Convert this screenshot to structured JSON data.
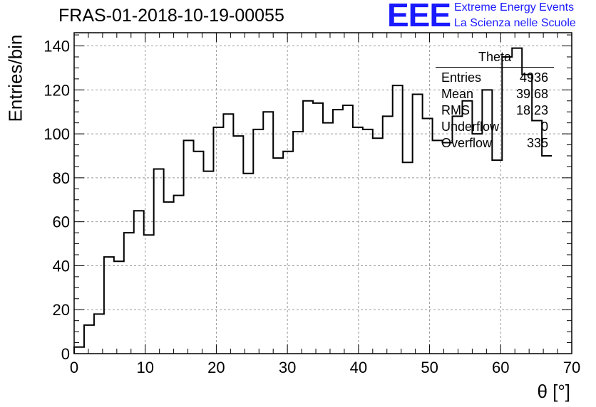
{
  "header": {
    "run_title": "FRAS-01-2018-10-19-00055",
    "logo_text": "EEE",
    "logo_line1": "Extreme Energy Events",
    "logo_line2": "La Scienza nelle Scuole"
  },
  "stats_box": {
    "title": "Theta",
    "rows": [
      {
        "label": "Entries",
        "value": "4936"
      },
      {
        "label": "Mean",
        "value": "39.68"
      },
      {
        "label": "RMS",
        "value": "18.23"
      },
      {
        "label": "Underflow",
        "value": "0"
      },
      {
        "label": "Overflow",
        "value": "335"
      }
    ]
  },
  "colors": {
    "line": "#000000",
    "grid": "#999999",
    "logo": "#1a1aff"
  },
  "chart_data": {
    "type": "histogram",
    "title": "FRAS-01-2018-10-19-00055",
    "xlabel": "θ [°]",
    "ylabel": "Entries/bin",
    "xlim": [
      0,
      70
    ],
    "ylim": [
      0,
      146
    ],
    "xticks": [
      0,
      10,
      20,
      30,
      40,
      50,
      60,
      70
    ],
    "yticks": [
      0,
      20,
      40,
      60,
      80,
      100,
      120,
      140
    ],
    "grid": true,
    "bin_width": 1.4,
    "bin_edges_start": 0,
    "values": [
      3,
      13,
      18,
      44,
      42,
      55,
      65,
      54,
      84,
      69,
      72,
      97,
      92,
      83,
      103,
      109,
      99,
      82,
      102,
      110,
      89,
      92,
      101,
      115,
      114,
      105,
      111,
      113,
      103,
      102,
      98,
      108,
      122,
      87,
      118,
      107,
      97,
      96,
      108,
      115,
      100,
      120,
      88,
      135,
      139,
      127,
      106,
      90
    ]
  }
}
